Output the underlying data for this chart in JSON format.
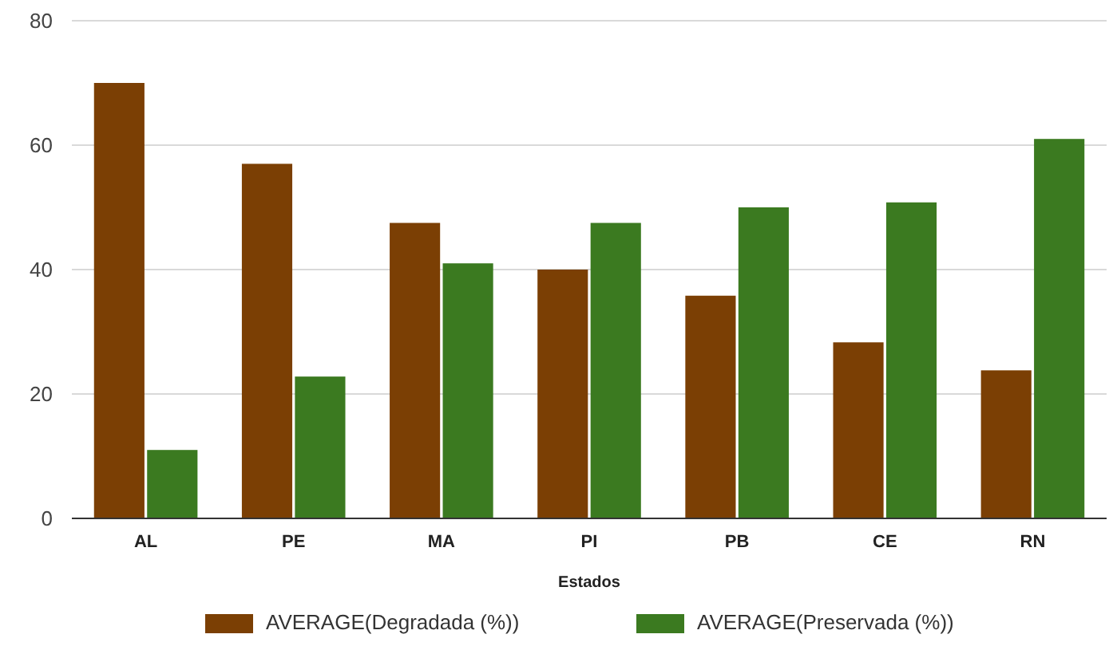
{
  "chart_data": {
    "type": "bar",
    "xlabel": "Estados",
    "categories": [
      "AL",
      "PE",
      "MA",
      "PI",
      "PB",
      "CE",
      "RN"
    ],
    "series": [
      {
        "name": "AVERAGE(Degradada (%))",
        "color": "#7b3f04",
        "values": [
          70,
          57,
          47.5,
          40,
          35.8,
          28.3,
          23.8
        ]
      },
      {
        "name": "AVERAGE(Preservada (%))",
        "color": "#3b7a20",
        "values": [
          11,
          22.8,
          41,
          47.5,
          50,
          50.8,
          61
        ]
      }
    ],
    "ylim": [
      0,
      80
    ],
    "yticks": [
      0,
      20,
      40,
      60,
      80
    ],
    "grid": "y",
    "legend": "bottom"
  }
}
